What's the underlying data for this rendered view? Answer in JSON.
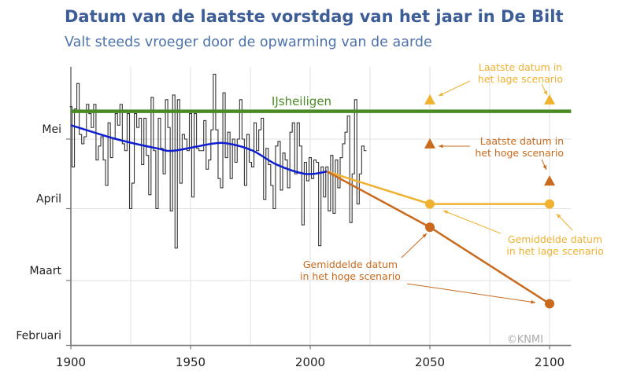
{
  "chart_data": {
    "type": "line",
    "title": "Datum van de laatste vorstdag van het jaar in De Bilt",
    "subtitle": "Valt steeds vroeger door de opwarming van de aarde",
    "xlabel": "",
    "ylabel": "",
    "xlim": [
      1900,
      2109
    ],
    "ylim": [
      "02-01",
      "05-31"
    ],
    "x_ticks": [
      "1900",
      "1950",
      "2000",
      "2050",
      "2100"
    ],
    "y_ticks": [
      {
        "label": "Mei",
        "date": "05-01"
      },
      {
        "label": "April",
        "date": "04-01"
      },
      {
        "label": "Maart",
        "date": "03-01"
      },
      {
        "label": "Februari",
        "date": "02-01"
      }
    ],
    "grid": true,
    "colors": {
      "annual": "#333333",
      "trend": "#1020d0",
      "ijsheiligen": "#4b8b25",
      "low": "#f0b12f",
      "high": "#c96a1c"
    },
    "annual_series": {
      "style": "step",
      "points": [
        [
          1900,
          "05-15"
        ],
        [
          1901,
          "04-19"
        ],
        [
          1902,
          "05-14"
        ],
        [
          1903,
          "05-25"
        ],
        [
          1904,
          "05-03"
        ],
        [
          1905,
          "04-29"
        ],
        [
          1906,
          "05-02"
        ],
        [
          1907,
          "05-16"
        ],
        [
          1908,
          "05-12"
        ],
        [
          1909,
          "05-06"
        ],
        [
          1910,
          "05-16"
        ],
        [
          1911,
          "04-22"
        ],
        [
          1912,
          "04-28"
        ],
        [
          1913,
          "05-02"
        ],
        [
          1914,
          "04-22"
        ],
        [
          1915,
          "04-11"
        ],
        [
          1916,
          "05-08"
        ],
        [
          1917,
          "04-23"
        ],
        [
          1918,
          "05-01"
        ],
        [
          1919,
          "05-12"
        ],
        [
          1920,
          "05-07"
        ],
        [
          1921,
          "05-16"
        ],
        [
          1922,
          "04-29"
        ],
        [
          1923,
          "04-26"
        ],
        [
          1924,
          "05-12"
        ],
        [
          1925,
          "04-01"
        ],
        [
          1926,
          "04-12"
        ],
        [
          1927,
          "05-12"
        ],
        [
          1928,
          "05-06"
        ],
        [
          1929,
          "05-10"
        ],
        [
          1930,
          "04-20"
        ],
        [
          1931,
          "05-10"
        ],
        [
          1932,
          "04-24"
        ],
        [
          1933,
          "04-07"
        ],
        [
          1934,
          "05-19"
        ],
        [
          1935,
          "04-26"
        ],
        [
          1936,
          "04-01"
        ],
        [
          1937,
          "05-10"
        ],
        [
          1938,
          "04-27"
        ],
        [
          1939,
          "04-16"
        ],
        [
          1940,
          "05-18"
        ],
        [
          1941,
          "05-06"
        ],
        [
          1942,
          "03-31"
        ],
        [
          1943,
          "05-20"
        ],
        [
          1944,
          "03-15"
        ],
        [
          1945,
          "05-18"
        ],
        [
          1946,
          "04-12"
        ],
        [
          1947,
          "05-03"
        ],
        [
          1948,
          "05-01"
        ],
        [
          1949,
          "04-26"
        ],
        [
          1950,
          "05-12"
        ],
        [
          1951,
          "04-06"
        ],
        [
          1952,
          "05-12"
        ],
        [
          1953,
          "04-27"
        ],
        [
          1954,
          "04-26"
        ],
        [
          1955,
          "04-26"
        ],
        [
          1956,
          "05-09"
        ],
        [
          1957,
          "04-18"
        ],
        [
          1958,
          "04-22"
        ],
        [
          1959,
          "05-05"
        ],
        [
          1960,
          "05-29"
        ],
        [
          1961,
          "05-05"
        ],
        [
          1962,
          "04-14"
        ],
        [
          1963,
          "04-10"
        ],
        [
          1964,
          "05-21"
        ],
        [
          1965,
          "04-23"
        ],
        [
          1966,
          "05-04"
        ],
        [
          1967,
          "04-14"
        ],
        [
          1968,
          "05-01"
        ],
        [
          1969,
          "04-21"
        ],
        [
          1970,
          "05-01"
        ],
        [
          1971,
          "05-18"
        ],
        [
          1972,
          "05-01"
        ],
        [
          1973,
          "04-11"
        ],
        [
          1974,
          "05-03"
        ],
        [
          1975,
          "04-21"
        ],
        [
          1976,
          "04-19"
        ],
        [
          1977,
          "05-08"
        ],
        [
          1978,
          "04-26"
        ],
        [
          1979,
          "05-05"
        ],
        [
          1980,
          "05-10"
        ],
        [
          1981,
          "04-05"
        ],
        [
          1982,
          "04-27"
        ],
        [
          1983,
          "04-20"
        ],
        [
          1984,
          "04-11"
        ],
        [
          1985,
          "04-01"
        ],
        [
          1986,
          "04-28"
        ],
        [
          1987,
          "04-30"
        ],
        [
          1988,
          "04-09"
        ],
        [
          1989,
          "04-25"
        ],
        [
          1990,
          "04-22"
        ],
        [
          1991,
          "04-10"
        ],
        [
          1992,
          "05-04"
        ],
        [
          1993,
          "05-08"
        ],
        [
          1994,
          "04-16"
        ],
        [
          1995,
          "05-08"
        ],
        [
          1996,
          "04-28"
        ],
        [
          1997,
          "03-25"
        ],
        [
          1998,
          "04-21"
        ],
        [
          1999,
          "04-13"
        ],
        [
          2000,
          "04-23"
        ],
        [
          2001,
          "04-14"
        ],
        [
          2002,
          "04-22"
        ],
        [
          2003,
          "04-21"
        ],
        [
          2004,
          "03-16"
        ],
        [
          2005,
          "04-19"
        ],
        [
          2006,
          "04-06"
        ],
        [
          2007,
          "04-19"
        ],
        [
          2008,
          "03-31"
        ],
        [
          2009,
          "04-24"
        ],
        [
          2010,
          "03-30"
        ],
        [
          2011,
          "04-22"
        ],
        [
          2012,
          "04-10"
        ],
        [
          2013,
          "04-23"
        ],
        [
          2014,
          "04-29"
        ],
        [
          2015,
          "05-04"
        ],
        [
          2016,
          "05-11"
        ],
        [
          2017,
          "03-26"
        ],
        [
          2018,
          "04-16"
        ],
        [
          2019,
          "05-18"
        ],
        [
          2020,
          "04-03"
        ],
        [
          2021,
          "04-16"
        ],
        [
          2022,
          "04-28"
        ],
        [
          2023,
          "04-26"
        ]
      ]
    },
    "trend_series": {
      "points": [
        [
          1900,
          "05-07"
        ],
        [
          1919,
          "05-01"
        ],
        [
          1936,
          "04-27"
        ],
        [
          1943,
          "04-26"
        ],
        [
          1959,
          "04-29"
        ],
        [
          1966,
          "04-29"
        ],
        [
          1976,
          "04-26"
        ],
        [
          1986,
          "04-20"
        ],
        [
          1998,
          "04-16"
        ],
        [
          2007,
          "04-17"
        ]
      ]
    },
    "ijsheiligen": {
      "label": "IJsheiligen",
      "date": "05-13"
    },
    "low_scenario": {
      "mean": [
        [
          2007,
          "04-17"
        ],
        [
          2050,
          "04-03"
        ],
        [
          2100,
          "04-03"
        ]
      ],
      "latest": [
        [
          2050,
          "05-18"
        ],
        [
          2100,
          "05-18"
        ]
      ]
    },
    "high_scenario": {
      "mean": [
        [
          2007,
          "04-17"
        ],
        [
          2050,
          "03-24"
        ],
        [
          2100,
          "02-19"
        ]
      ],
      "latest": [
        [
          2050,
          "04-29"
        ],
        [
          2100,
          "04-13"
        ]
      ]
    },
    "annotations": {
      "low_latest": [
        "Laatste datum in",
        "het lage scenario"
      ],
      "high_latest": [
        "Laatste datum in",
        "het hoge scenario"
      ],
      "low_mean": [
        "Gemiddelde datum",
        "in het lage scenario"
      ],
      "high_mean": [
        "Gemiddelde datum",
        "in het hoge scenario"
      ]
    },
    "credit": "©KNMI"
  }
}
